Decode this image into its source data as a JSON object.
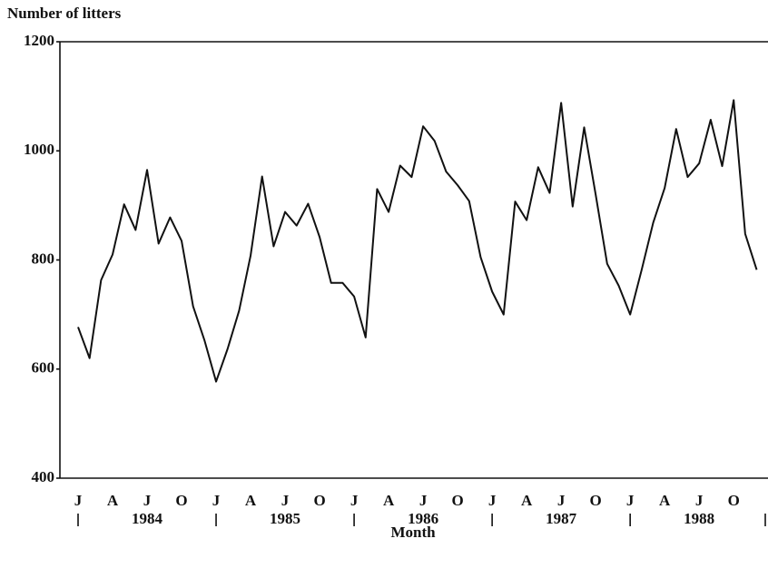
{
  "chart_data": {
    "type": "line",
    "ylabel": "Number of litters",
    "xlabel": "Month",
    "categories": [
      "J",
      null,
      null,
      "A",
      null,
      null,
      "J",
      null,
      null,
      "O",
      null,
      null,
      "J",
      null,
      null,
      "A",
      null,
      null,
      "J",
      null,
      null,
      "O",
      null,
      null,
      "J",
      null,
      null,
      "A",
      null,
      null,
      "J",
      null,
      null,
      "O",
      null,
      null,
      "J",
      null,
      null,
      "A",
      null,
      null,
      "J",
      null,
      null,
      "O",
      null,
      null,
      "J",
      null,
      null,
      "A",
      null,
      null,
      "J",
      null,
      null,
      "O",
      null,
      null
    ],
    "year_labels": [
      "1984",
      "1985",
      "1986",
      "1987",
      "1988"
    ],
    "values": [
      677,
      620,
      763,
      810,
      902,
      855,
      965,
      830,
      878,
      835,
      715,
      652,
      577,
      637,
      707,
      808,
      953,
      825,
      888,
      863,
      903,
      842,
      758,
      758,
      733,
      658,
      930,
      888,
      973,
      952,
      1045,
      1018,
      962,
      937,
      908,
      805,
      742,
      700,
      907,
      873,
      970,
      923,
      1088,
      898,
      1043,
      920,
      793,
      753,
      700,
      782,
      868,
      932,
      1040,
      952,
      977,
      1057,
      972,
      1093,
      848,
      782
    ],
    "color": "#111111",
    "ylim": [
      400,
      1200
    ],
    "yticks": [
      400,
      600,
      800,
      1000,
      1200
    ],
    "grid": false
  }
}
